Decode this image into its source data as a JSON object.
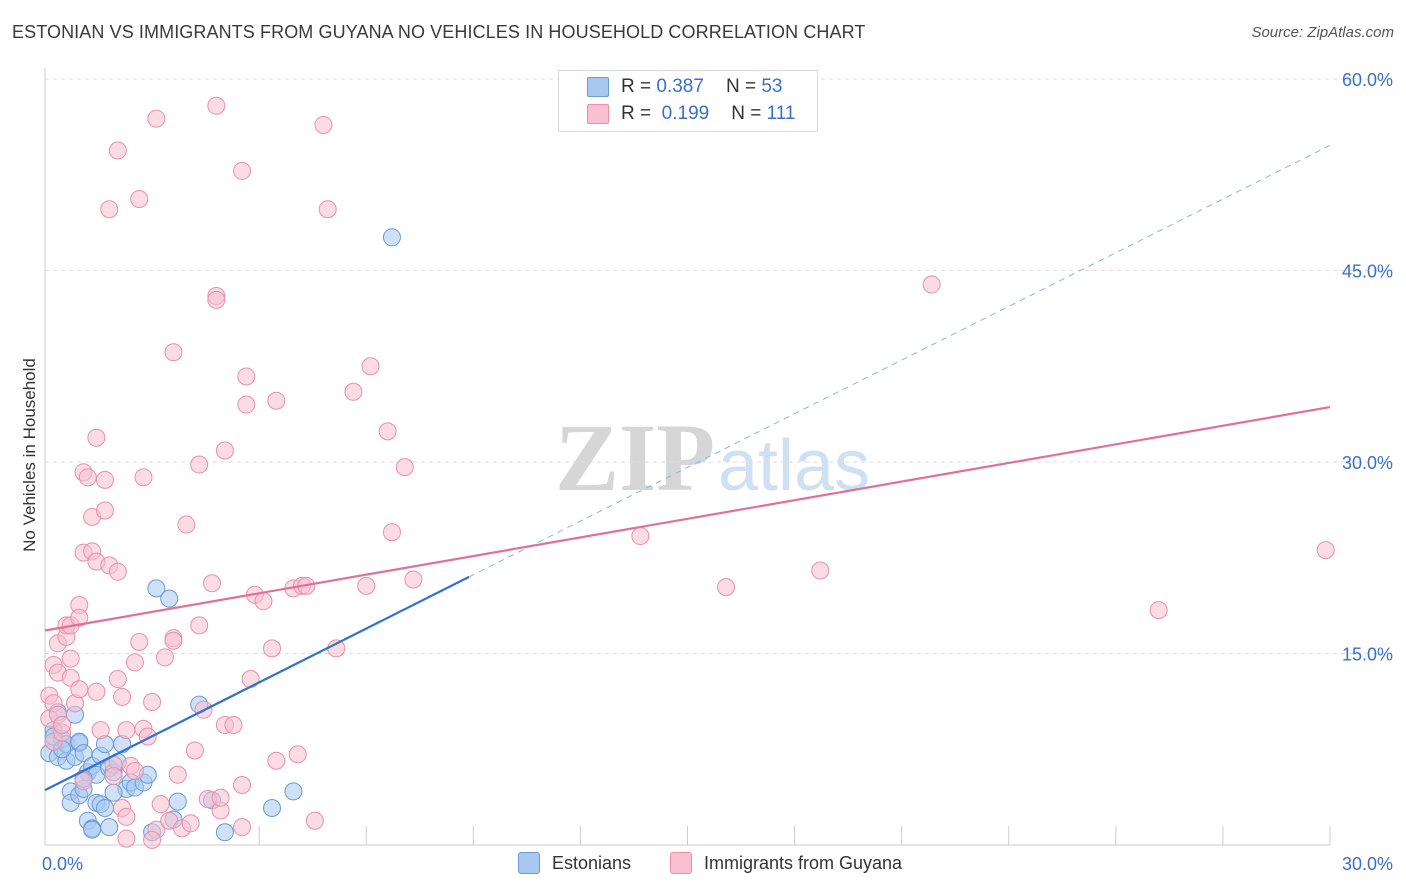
{
  "title": "ESTONIAN VS IMMIGRANTS FROM GUYANA NO VEHICLES IN HOUSEHOLD CORRELATION CHART",
  "source": "Source: ZipAtlas.com",
  "watermark": {
    "zip": "ZIP",
    "atlas": "atlas"
  },
  "legend": {
    "rows": [
      {
        "r_label": "R =",
        "r_value": "0.387",
        "n_label": "N =",
        "n_value": "53",
        "color": "#a8c8f0",
        "border": "#6a9ad8"
      },
      {
        "r_label": "R =",
        "r_value": "0.199",
        "n_label": "N =",
        "n_value": "111",
        "color": "#f8c0d0",
        "border": "#e890aa"
      }
    ]
  },
  "bottom_legend": [
    {
      "label": "Estonians",
      "color": "#a8c8f0",
      "border": "#6a9ad8"
    },
    {
      "label": "Immigrants from Guyana",
      "color": "#f8c0d0",
      "border": "#e890aa"
    }
  ],
  "chart_data": {
    "type": "scatter",
    "title": "ESTONIAN VS IMMIGRANTS FROM GUYANA NO VEHICLES IN HOUSEHOLD CORRELATION CHART",
    "ylabel": "No Vehicles in Household",
    "xlabel": "",
    "xlim": [
      0,
      30
    ],
    "ylim": [
      0,
      60
    ],
    "x_tick_labels": [
      {
        "value": 0,
        "label": "0.0%"
      },
      {
        "value": 30,
        "label": "30.0%"
      }
    ],
    "y_tick_labels": [
      {
        "value": 15,
        "label": "15.0%"
      },
      {
        "value": 30,
        "label": "30.0%"
      },
      {
        "value": 45,
        "label": "45.0%"
      },
      {
        "value": 60,
        "label": "60.0%"
      }
    ],
    "grid": true,
    "series": [
      {
        "name": "Estonians",
        "color": "#6a9ad8",
        "fill": "#a8c8f0",
        "trend": {
          "x0": 0,
          "y0": 4.3,
          "x1": 9.9,
          "y1": 21.0,
          "dash_to_x": 30,
          "dash_to_y": 54.8
        },
        "points": [
          [
            0.1,
            7.2
          ],
          [
            0.2,
            9.0
          ],
          [
            0.2,
            8.1
          ],
          [
            0.3,
            6.9
          ],
          [
            0.3,
            10.4
          ],
          [
            0.4,
            8.3
          ],
          [
            0.5,
            6.6
          ],
          [
            0.5,
            7.9
          ],
          [
            0.6,
            4.2
          ],
          [
            0.6,
            3.3
          ],
          [
            0.7,
            6.9
          ],
          [
            0.7,
            10.2
          ],
          [
            0.8,
            8.0
          ],
          [
            0.8,
            8.1
          ],
          [
            0.8,
            3.9
          ],
          [
            0.9,
            7.2
          ],
          [
            0.9,
            4.4
          ],
          [
            1.0,
            1.9
          ],
          [
            1.0,
            5.7
          ],
          [
            1.1,
            1.3
          ],
          [
            1.1,
            1.2
          ],
          [
            1.1,
            6.2
          ],
          [
            1.2,
            5.5
          ],
          [
            1.2,
            3.3
          ],
          [
            1.3,
            7.0
          ],
          [
            1.3,
            3.2
          ],
          [
            1.4,
            2.9
          ],
          [
            1.4,
            7.9
          ],
          [
            1.5,
            1.4
          ],
          [
            1.5,
            6.0
          ],
          [
            1.6,
            5.7
          ],
          [
            1.7,
            6.5
          ],
          [
            1.8,
            7.9
          ],
          [
            1.9,
            4.4
          ],
          [
            2.0,
            4.9
          ],
          [
            2.1,
            4.5
          ],
          [
            2.3,
            4.9
          ],
          [
            2.4,
            5.5
          ],
          [
            2.5,
            1.0
          ],
          [
            2.6,
            20.1
          ],
          [
            2.9,
            19.3
          ],
          [
            3.0,
            2.0
          ],
          [
            3.1,
            3.4
          ],
          [
            3.6,
            11.0
          ],
          [
            3.9,
            3.5
          ],
          [
            4.2,
            1.0
          ],
          [
            5.3,
            2.9
          ],
          [
            5.8,
            4.2
          ],
          [
            8.1,
            47.6
          ],
          [
            0.2,
            8.5
          ],
          [
            0.4,
            7.5
          ],
          [
            0.9,
            5.2
          ],
          [
            1.6,
            4.1
          ]
        ]
      },
      {
        "name": "Immigrants from Guyana",
        "color": "#e890aa",
        "fill": "#f8c0d0",
        "trend": {
          "x0": 0,
          "y0": 16.8,
          "x1": 30,
          "y1": 34.3
        },
        "points": [
          [
            0.1,
            11.7
          ],
          [
            0.1,
            9.9
          ],
          [
            0.2,
            14.1
          ],
          [
            0.2,
            11.1
          ],
          [
            0.2,
            8.1
          ],
          [
            0.3,
            10.2
          ],
          [
            0.3,
            15.8
          ],
          [
            0.3,
            13.5
          ],
          [
            0.4,
            8.8
          ],
          [
            0.4,
            9.4
          ],
          [
            0.5,
            16.3
          ],
          [
            0.5,
            17.2
          ],
          [
            0.6,
            13.1
          ],
          [
            0.6,
            17.2
          ],
          [
            0.6,
            14.6
          ],
          [
            0.7,
            11.1
          ],
          [
            0.8,
            12.2
          ],
          [
            0.8,
            18.8
          ],
          [
            0.8,
            17.8
          ],
          [
            0.9,
            22.9
          ],
          [
            0.9,
            29.2
          ],
          [
            1.0,
            28.8
          ],
          [
            1.1,
            23.0
          ],
          [
            1.1,
            25.7
          ],
          [
            1.2,
            31.9
          ],
          [
            1.2,
            22.2
          ],
          [
            1.2,
            12.0
          ],
          [
            1.3,
            9.0
          ],
          [
            1.4,
            26.2
          ],
          [
            1.4,
            28.6
          ],
          [
            1.5,
            21.9
          ],
          [
            1.6,
            6.3
          ],
          [
            1.6,
            5.4
          ],
          [
            1.7,
            21.4
          ],
          [
            1.7,
            13.0
          ],
          [
            1.8,
            2.9
          ],
          [
            1.8,
            11.6
          ],
          [
            1.9,
            9.0
          ],
          [
            2.0,
            6.2
          ],
          [
            2.1,
            14.3
          ],
          [
            2.1,
            5.8
          ],
          [
            2.2,
            15.9
          ],
          [
            2.3,
            28.8
          ],
          [
            2.3,
            9.1
          ],
          [
            2.4,
            8.5
          ],
          [
            2.5,
            11.2
          ],
          [
            2.6,
            1.2
          ],
          [
            2.7,
            3.2
          ],
          [
            2.8,
            14.7
          ],
          [
            2.9,
            1.9
          ],
          [
            3.0,
            16.2
          ],
          [
            3.0,
            16.0
          ],
          [
            3.1,
            5.5
          ],
          [
            3.2,
            1.3
          ],
          [
            3.3,
            25.1
          ],
          [
            3.4,
            1.7
          ],
          [
            3.5,
            7.4
          ],
          [
            3.6,
            29.8
          ],
          [
            3.6,
            17.2
          ],
          [
            3.7,
            10.6
          ],
          [
            3.8,
            3.6
          ],
          [
            3.9,
            20.5
          ],
          [
            4.0,
            43.0
          ],
          [
            4.0,
            42.7
          ],
          [
            4.1,
            2.7
          ],
          [
            4.1,
            3.7
          ],
          [
            4.2,
            9.4
          ],
          [
            4.2,
            30.9
          ],
          [
            4.4,
            9.4
          ],
          [
            4.6,
            1.4
          ],
          [
            4.7,
            34.5
          ],
          [
            4.7,
            36.7
          ],
          [
            4.8,
            13.0
          ],
          [
            4.9,
            19.6
          ],
          [
            5.1,
            19.1
          ],
          [
            5.3,
            15.4
          ],
          [
            5.4,
            6.6
          ],
          [
            5.4,
            34.8
          ],
          [
            5.8,
            20.1
          ],
          [
            5.9,
            7.1
          ],
          [
            6.0,
            20.3
          ],
          [
            6.1,
            20.3
          ],
          [
            6.3,
            1.9
          ],
          [
            6.5,
            56.4
          ],
          [
            6.6,
            49.8
          ],
          [
            6.8,
            15.4
          ],
          [
            7.2,
            35.5
          ],
          [
            7.5,
            20.3
          ],
          [
            7.6,
            37.5
          ],
          [
            8.0,
            32.4
          ],
          [
            8.1,
            24.5
          ],
          [
            8.4,
            29.6
          ],
          [
            8.6,
            20.8
          ],
          [
            13.9,
            24.2
          ],
          [
            15.9,
            20.2
          ],
          [
            18.1,
            21.5
          ],
          [
            20.7,
            43.9
          ],
          [
            26.0,
            18.4
          ],
          [
            29.9,
            23.1
          ],
          [
            2.6,
            56.9
          ],
          [
            2.2,
            50.6
          ],
          [
            1.7,
            54.4
          ],
          [
            1.5,
            49.8
          ],
          [
            4.0,
            57.9
          ],
          [
            4.6,
            52.8
          ],
          [
            3.0,
            38.6
          ],
          [
            0.9,
            5.0
          ],
          [
            1.9,
            2.2
          ],
          [
            2.5,
            0.4
          ],
          [
            1.9,
            0.5
          ],
          [
            4.6,
            4.7
          ]
        ]
      }
    ]
  }
}
